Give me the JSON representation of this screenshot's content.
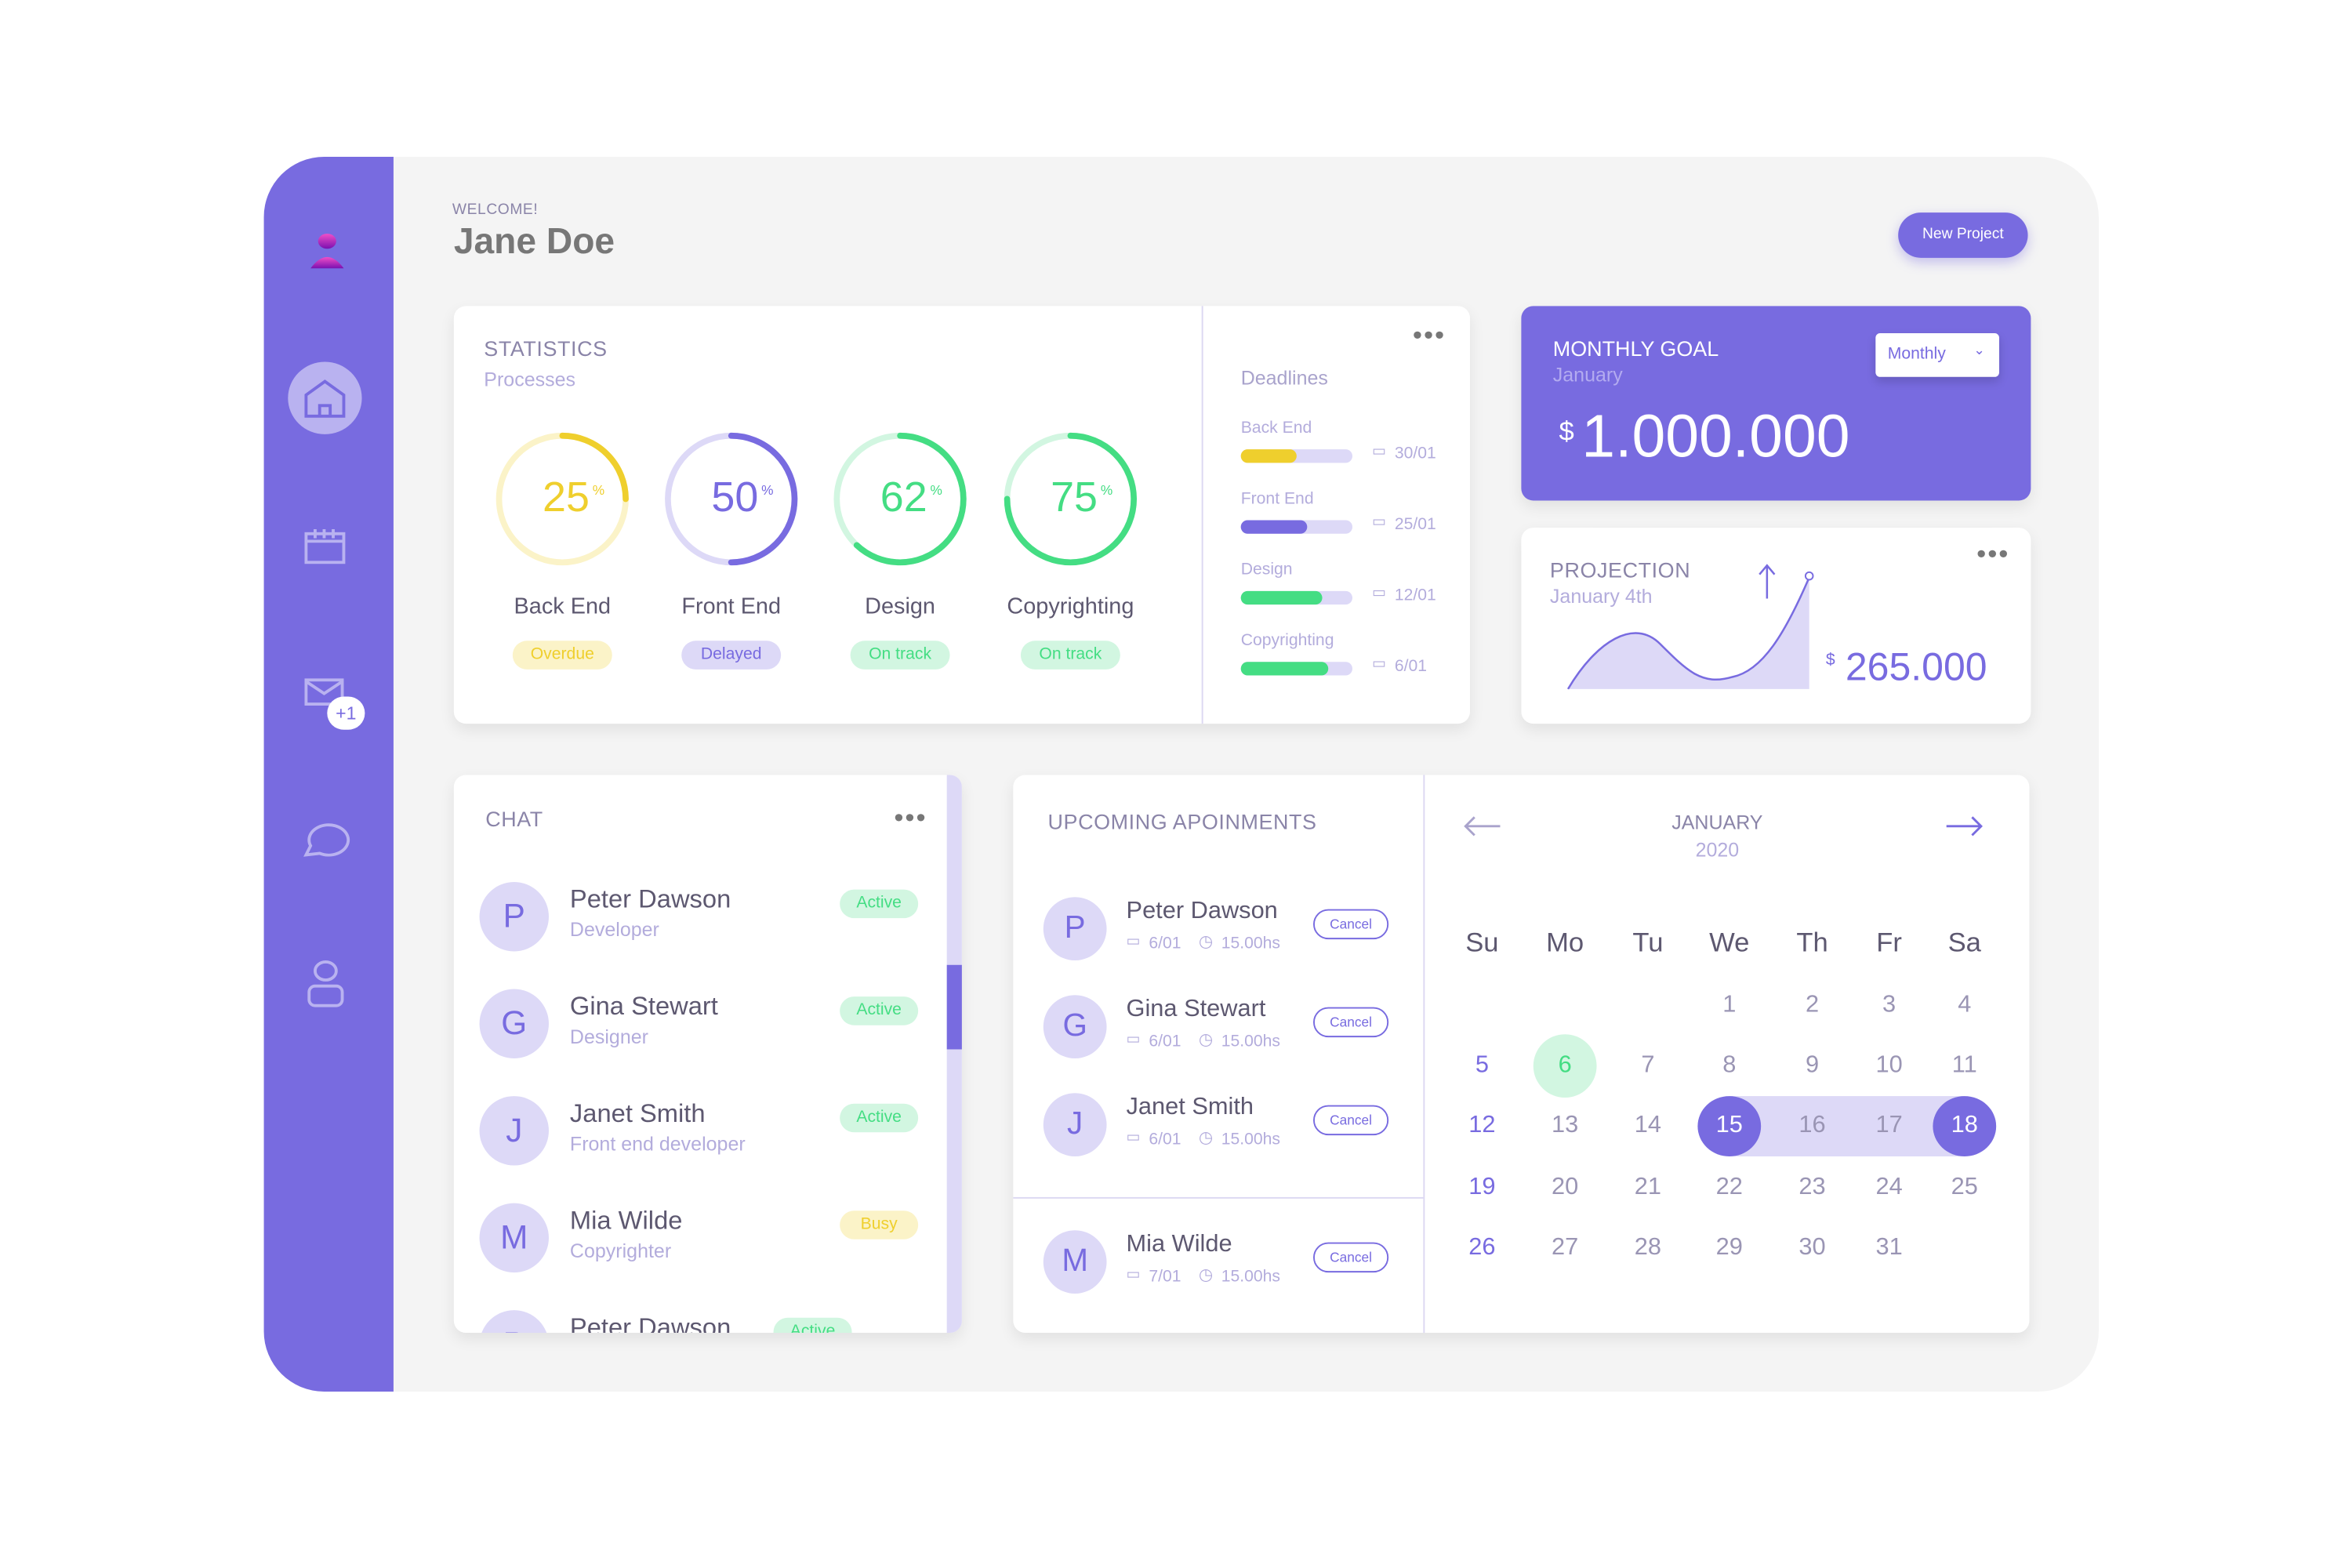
{
  "header": {
    "welcome": "WELCOME!",
    "user_name": "Jane Doe",
    "new_project_label": "New Project"
  },
  "sidebar": {
    "items": [
      {
        "icon": "user-icon"
      },
      {
        "icon": "home-icon",
        "active": true
      },
      {
        "icon": "calendar-icon"
      },
      {
        "icon": "mail-icon",
        "badge": "+1"
      },
      {
        "icon": "chat-bubble-icon"
      },
      {
        "icon": "profile-icon"
      }
    ]
  },
  "statistics": {
    "title": "STATISTICS",
    "subtitle": "Processes",
    "processes": [
      {
        "label": "Back End",
        "percent": 25,
        "percent_text": "25",
        "unit": "%",
        "status": "Overdue",
        "color": "#efcf2d",
        "track": "#fbf3c8",
        "badge": "bYellow"
      },
      {
        "label": "Front End",
        "percent": 50,
        "percent_text": "50",
        "unit": "%",
        "status": "Delayed",
        "color": "#786be0",
        "track": "#ddd9f7",
        "badge": "bPurple"
      },
      {
        "label": "Design",
        "percent": 62,
        "percent_text": "62",
        "unit": "%",
        "status": "On track",
        "color": "#44dd83",
        "track": "#d2f6e1",
        "badge": "bGreen"
      },
      {
        "label": "Copyrighting",
        "percent": 75,
        "percent_text": "75",
        "unit": "%",
        "status": "On track",
        "color": "#44dd83",
        "track": "#d2f6e1",
        "badge": "bGreen"
      }
    ]
  },
  "deadlines": {
    "title": "Deadlines",
    "items": [
      {
        "label": "Back End",
        "progress": 0.5,
        "date": "30/01",
        "color": "#efcf2d"
      },
      {
        "label": "Front End",
        "progress": 0.6,
        "date": "25/01",
        "color": "#786be0"
      },
      {
        "label": "Design",
        "progress": 0.73,
        "date": "12/01",
        "color": "#44dd83"
      },
      {
        "label": "Copyrighting",
        "progress": 0.78,
        "date": "6/01",
        "color": "#44dd83"
      }
    ]
  },
  "monthly_goal": {
    "title": "MONTHLY GOAL",
    "subtitle": "January",
    "currency": "$",
    "amount": "1.000.000",
    "dropdown": "Monthly"
  },
  "projection": {
    "title": "PROJECTION",
    "subtitle": "January 4th",
    "currency": "$",
    "amount": "265.000"
  },
  "chat": {
    "title": "CHAT",
    "contacts": [
      {
        "initial": "P",
        "name": "Peter Dawson",
        "role": "Developer",
        "status": "Active",
        "badge": "bGreen"
      },
      {
        "initial": "G",
        "name": "Gina Stewart",
        "role": "Designer",
        "status": "Active",
        "badge": "bGreen"
      },
      {
        "initial": "J",
        "name": "Janet Smith",
        "role": "Front end developer",
        "status": "Active",
        "badge": "bGreen"
      },
      {
        "initial": "M",
        "name": "Mia Wilde",
        "role": "Copyrighter",
        "status": "Busy",
        "badge": "bYellow"
      },
      {
        "initial": "P",
        "name": "Peter Dawson",
        "role": "",
        "status": "Active",
        "badge": "bGreen"
      }
    ]
  },
  "appointments": {
    "title": "UPCOMING APOINMENTS",
    "cancel_label": "Cancel",
    "items": [
      {
        "initial": "P",
        "name": "Peter Dawson",
        "date": "6/01",
        "time": "15.00hs"
      },
      {
        "initial": "G",
        "name": "Gina Stewart",
        "date": "6/01",
        "time": "15.00hs"
      },
      {
        "initial": "J",
        "name": "Janet Smith",
        "date": "6/01",
        "time": "15.00hs"
      },
      {
        "initial": "M",
        "name": "Mia Wilde",
        "date": "7/01",
        "time": "15.00hs"
      }
    ]
  },
  "calendar": {
    "month": "JANUARY",
    "year": "2020",
    "weekdays": [
      "Su",
      "Mo",
      "Tu",
      "We",
      "Th",
      "Fr",
      "Sa"
    ],
    "first_weekday": 3,
    "days": 31,
    "today": 6,
    "range_start": 15,
    "range_end": 18
  },
  "colors": {
    "accent": "#786be0",
    "green": "#44dd83",
    "yellow": "#efcf2d",
    "light_purple": "#ddd9f7"
  }
}
